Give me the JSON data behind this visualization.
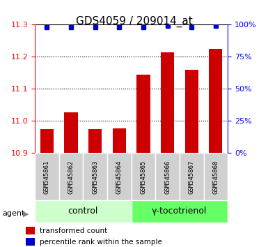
{
  "title": "GDS4059 / 209014_at",
  "samples": [
    "GSM545861",
    "GSM545862",
    "GSM545863",
    "GSM545864",
    "GSM545865",
    "GSM545866",
    "GSM545867",
    "GSM545868"
  ],
  "bar_values": [
    10.975,
    11.028,
    10.975,
    10.978,
    11.145,
    11.215,
    11.16,
    11.225
  ],
  "percentile_values": [
    98,
    98,
    98,
    98,
    98,
    99,
    98,
    99
  ],
  "ylim": [
    10.9,
    11.3
  ],
  "yticks": [
    10.9,
    11.0,
    11.1,
    11.2,
    11.3
  ],
  "y2lim": [
    0,
    100
  ],
  "y2ticks": [
    0,
    25,
    50,
    75,
    100
  ],
  "bar_color": "#cc0000",
  "dot_color": "#0000cc",
  "bar_bottom": 10.9,
  "groups": [
    {
      "label": "control",
      "start": 0,
      "end": 4,
      "color": "#ccffcc"
    },
    {
      "label": "γ-tocotrienol",
      "start": 4,
      "end": 8,
      "color": "#66ff66"
    }
  ],
  "legend_bar_label": "transformed count",
  "legend_dot_label": "percentile rank within the sample",
  "agent_label": "agent",
  "title_fontsize": 11,
  "axis_label_fontsize": 9,
  "tick_fontsize": 8,
  "group_label_fontsize": 9
}
